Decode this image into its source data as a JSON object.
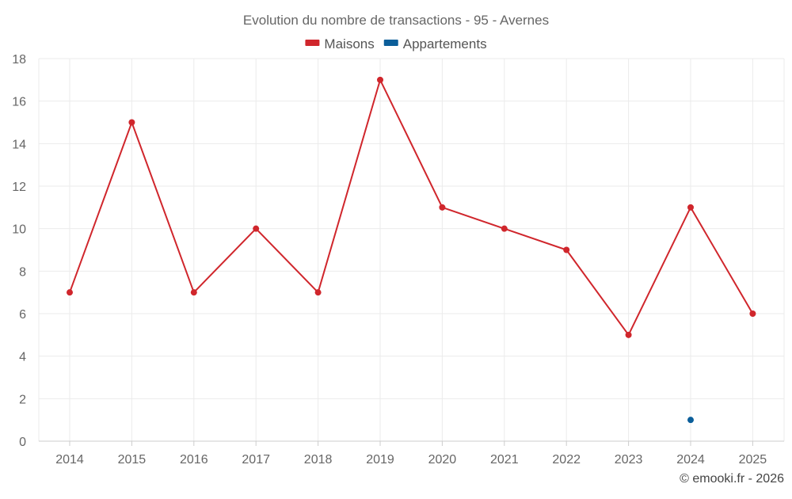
{
  "chart_data": {
    "type": "line",
    "title": "Evolution du nombre de transactions - 95 - Avernes",
    "x": [
      "2014",
      "2015",
      "2016",
      "2017",
      "2018",
      "2019",
      "2020",
      "2021",
      "2022",
      "2023",
      "2024",
      "2025"
    ],
    "yticks": [
      "0",
      "2",
      "4",
      "6",
      "8",
      "10",
      "12",
      "14",
      "16",
      "18"
    ],
    "ylim": [
      0,
      18
    ],
    "grid": true,
    "legend_position": "top-center",
    "series": [
      {
        "name": "Maisons",
        "color": "#d0262c",
        "values": [
          7,
          15,
          7,
          10,
          7,
          17,
          11,
          10,
          9,
          5,
          11,
          6
        ]
      },
      {
        "name": "Appartements",
        "color": "#0b5e9a",
        "values": [
          null,
          null,
          null,
          null,
          null,
          null,
          null,
          null,
          null,
          null,
          1,
          null
        ]
      }
    ]
  },
  "credit": "© emooki.fr - 2026"
}
